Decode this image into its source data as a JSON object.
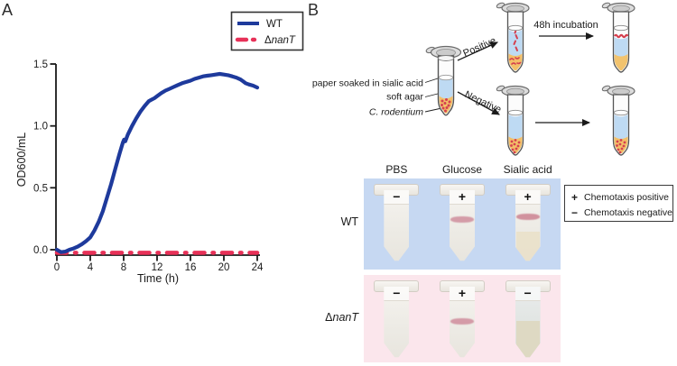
{
  "panel_a": {
    "label": "A",
    "legend": {
      "wt": "WT",
      "mutant_delta": "Δ",
      "mutant_gene": "nanT"
    }
  },
  "chart_data": {
    "type": "line",
    "title": "",
    "xlabel": "Time (h)",
    "ylabel": "OD600/mL",
    "xlim": [
      0,
      24
    ],
    "ylim": [
      0,
      1.5
    ],
    "xtick_labels": [
      "0",
      "4",
      "8",
      "12",
      "16",
      "20",
      "24"
    ],
    "ytick_labels": [
      "0.0",
      "0.5",
      "1.0",
      "1.5"
    ],
    "grid": false,
    "legend_position": "top-right",
    "series": [
      {
        "name": "WT",
        "color": "#1e3a9c",
        "style": "solid",
        "x": [
          0,
          0.5,
          1,
          1.5,
          2,
          2.5,
          3,
          3.5,
          4,
          4.5,
          5,
          5.5,
          6,
          6.5,
          7,
          7.5,
          7.9,
          8.05,
          8.2,
          8.5,
          9,
          9.5,
          10,
          10.5,
          11,
          11.3,
          11.7,
          12,
          12.5,
          13,
          13.5,
          14,
          14.5,
          15,
          15.5,
          16,
          16.5,
          17,
          17.5,
          18,
          18.5,
          19,
          19.5,
          20,
          20.5,
          21,
          21.5,
          22,
          22.3,
          22.6,
          23,
          23.5,
          24
        ],
        "y": [
          0.0,
          -0.02,
          -0.015,
          0.0,
          0.01,
          0.025,
          0.045,
          0.07,
          0.1,
          0.155,
          0.225,
          0.31,
          0.42,
          0.53,
          0.655,
          0.775,
          0.865,
          0.89,
          0.875,
          0.93,
          1.0,
          1.06,
          1.115,
          1.16,
          1.2,
          1.21,
          1.225,
          1.24,
          1.265,
          1.285,
          1.3,
          1.315,
          1.33,
          1.345,
          1.355,
          1.365,
          1.38,
          1.39,
          1.4,
          1.405,
          1.41,
          1.415,
          1.42,
          1.415,
          1.41,
          1.4,
          1.39,
          1.375,
          1.36,
          1.345,
          1.335,
          1.325,
          1.31
        ]
      },
      {
        "name": "ΔnanT",
        "color": "#e73158",
        "style": "dash-dot",
        "x": [
          0,
          24
        ],
        "y": [
          -0.025,
          -0.025
        ]
      }
    ]
  },
  "panel_b": {
    "label": "B",
    "schematic": {
      "label_paper": "paper soaked in sialic acid",
      "label_agar": "soft agar",
      "label_bacteria": "C. rodentium",
      "arrow_positive": "Positive",
      "arrow_negative": "Negative",
      "arrow_incubation": "48h incubation"
    },
    "photos": {
      "columns": [
        "PBS",
        "Glucose",
        "Sialic acid"
      ],
      "strip_colors": [
        "#c6d8f2",
        "#fbe6ec"
      ],
      "rows": [
        {
          "label": "WT",
          "signs": [
            "−",
            "+",
            "+"
          ]
        },
        {
          "label_delta": "Δ",
          "label_gene": "nanT",
          "signs": [
            "−",
            "+",
            "−"
          ]
        }
      ],
      "legend": [
        {
          "symbol": "+",
          "label": "Chemotaxis positive"
        },
        {
          "symbol": "−",
          "label": "Chemotaxis negative"
        }
      ]
    }
  }
}
